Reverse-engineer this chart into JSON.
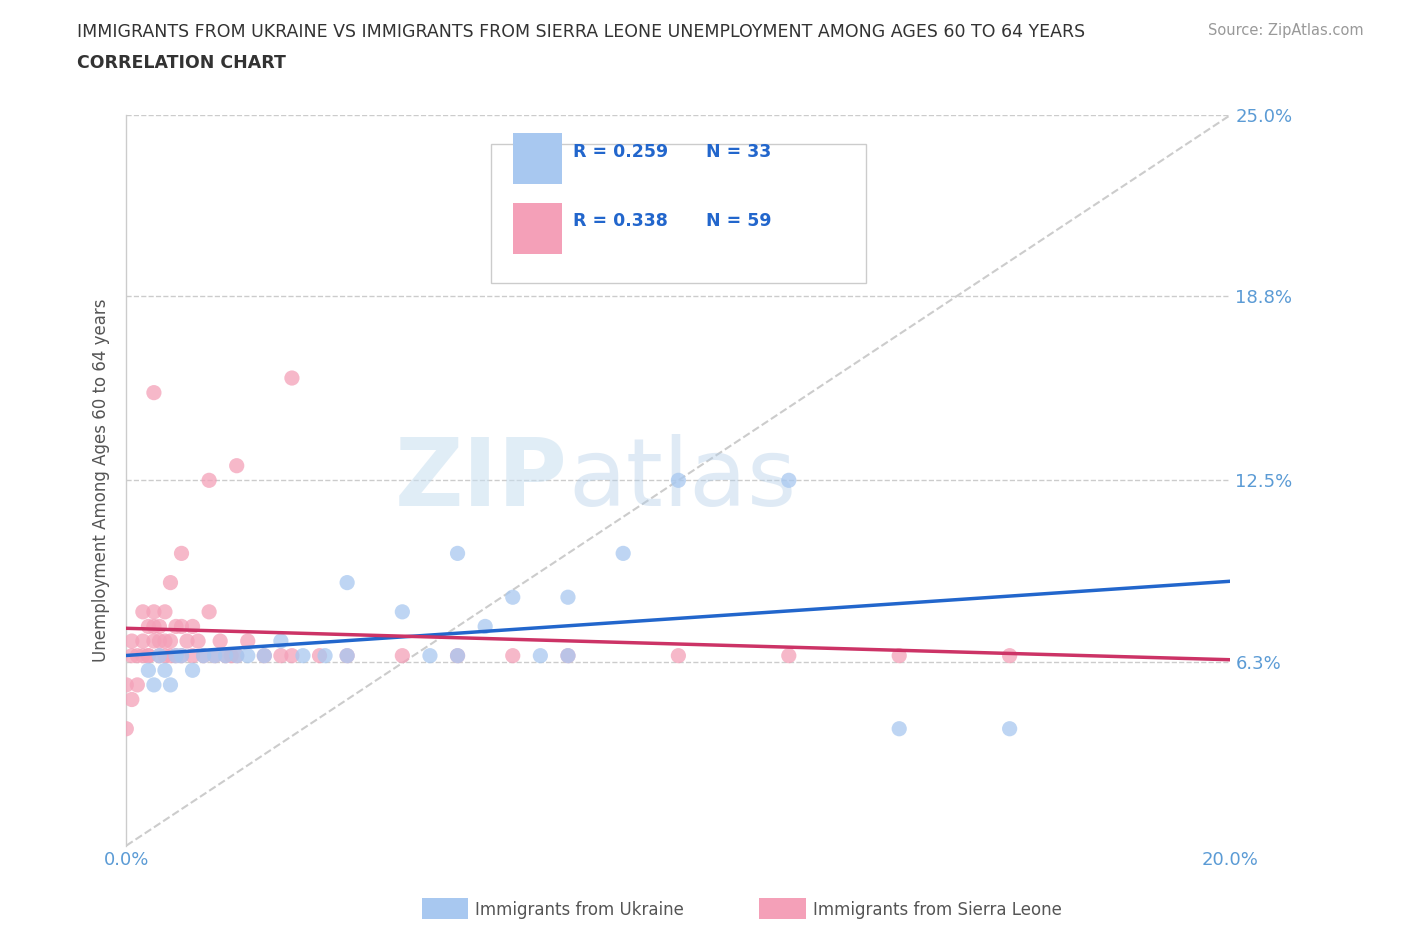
{
  "title_line1": "IMMIGRANTS FROM UKRAINE VS IMMIGRANTS FROM SIERRA LEONE UNEMPLOYMENT AMONG AGES 60 TO 64 YEARS",
  "title_line2": "CORRELATION CHART",
  "source_text": "Source: ZipAtlas.com",
  "ylabel": "Unemployment Among Ages 60 to 64 years",
  "xlim": [
    0.0,
    0.2
  ],
  "ylim": [
    0.0,
    0.25
  ],
  "ytick_vals": [
    0.0,
    0.063,
    0.125,
    0.188,
    0.25
  ],
  "ytick_labels": [
    "",
    "6.3%",
    "12.5%",
    "18.8%",
    "25.0%"
  ],
  "xtick_vals": [
    0.0,
    0.05,
    0.1,
    0.15,
    0.2
  ],
  "xtick_labels": [
    "0.0%",
    "",
    "",
    "",
    "20.0%"
  ],
  "R_ukraine": 0.259,
  "N_ukraine": 33,
  "R_sierra_leone": 0.338,
  "N_sierra_leone": 59,
  "ukraine_color": "#a8c8f0",
  "sierra_leone_color": "#f4a0b8",
  "ukraine_line_color": "#2266cc",
  "sierra_leone_line_color": "#cc3366",
  "ref_line_color": "#cccccc",
  "legend_label_ukraine": "Immigrants from Ukraine",
  "legend_label_sierra_leone": "Immigrants from Sierra Leone",
  "ukraine_x": [
    0.004,
    0.005,
    0.006,
    0.007,
    0.008,
    0.009,
    0.01,
    0.012,
    0.014,
    0.016,
    0.018,
    0.02,
    0.022,
    0.025,
    0.028,
    0.032,
    0.036,
    0.04,
    0.05,
    0.055,
    0.06,
    0.065,
    0.07,
    0.075,
    0.08,
    0.09,
    0.1,
    0.12,
    0.14,
    0.16,
    0.04,
    0.06,
    0.08
  ],
  "ukraine_y": [
    0.06,
    0.055,
    0.065,
    0.06,
    0.055,
    0.065,
    0.065,
    0.06,
    0.065,
    0.065,
    0.065,
    0.065,
    0.065,
    0.065,
    0.07,
    0.065,
    0.065,
    0.09,
    0.08,
    0.065,
    0.1,
    0.075,
    0.085,
    0.065,
    0.085,
    0.1,
    0.125,
    0.125,
    0.04,
    0.04,
    0.065,
    0.065,
    0.065
  ],
  "sl_x": [
    0.0,
    0.0,
    0.001,
    0.001,
    0.001,
    0.002,
    0.002,
    0.003,
    0.003,
    0.003,
    0.004,
    0.004,
    0.004,
    0.005,
    0.005,
    0.005,
    0.006,
    0.006,
    0.006,
    0.007,
    0.007,
    0.007,
    0.008,
    0.008,
    0.009,
    0.009,
    0.01,
    0.01,
    0.011,
    0.012,
    0.012,
    0.013,
    0.014,
    0.015,
    0.016,
    0.017,
    0.018,
    0.019,
    0.02,
    0.022,
    0.025,
    0.028,
    0.03,
    0.035,
    0.04,
    0.05,
    0.06,
    0.07,
    0.08,
    0.1,
    0.12,
    0.14,
    0.16,
    0.02,
    0.03,
    0.005,
    0.008,
    0.01,
    0.015
  ],
  "sl_y": [
    0.04,
    0.055,
    0.05,
    0.065,
    0.07,
    0.055,
    0.065,
    0.065,
    0.07,
    0.08,
    0.065,
    0.075,
    0.065,
    0.07,
    0.08,
    0.075,
    0.065,
    0.07,
    0.075,
    0.065,
    0.07,
    0.08,
    0.065,
    0.07,
    0.065,
    0.075,
    0.065,
    0.075,
    0.07,
    0.065,
    0.075,
    0.07,
    0.065,
    0.08,
    0.065,
    0.07,
    0.065,
    0.065,
    0.065,
    0.07,
    0.065,
    0.065,
    0.065,
    0.065,
    0.065,
    0.065,
    0.065,
    0.065,
    0.065,
    0.065,
    0.065,
    0.065,
    0.065,
    0.13,
    0.16,
    0.155,
    0.09,
    0.1,
    0.125
  ],
  "watermark_zip": "ZIP",
  "watermark_atlas": "atlas",
  "background_color": "#ffffff",
  "title_color": "#333333",
  "tick_label_color": "#5b9bd5",
  "legend_R_color": "#2266cc",
  "ylabel_color": "#555555"
}
